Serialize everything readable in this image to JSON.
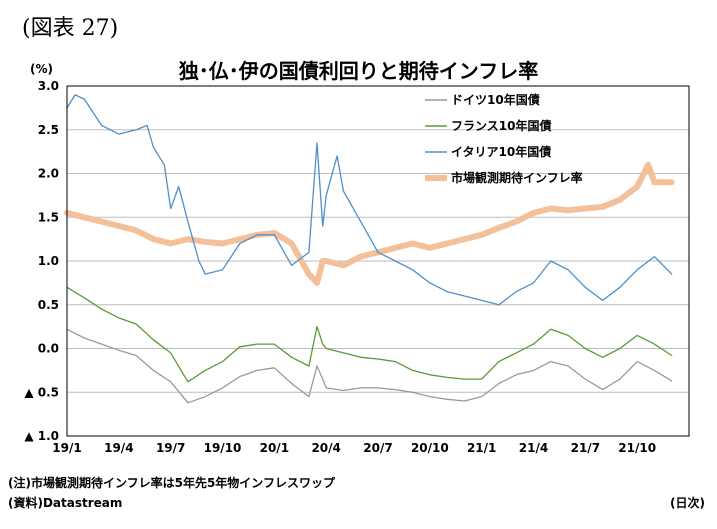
{
  "figure_label": "(図表 27)",
  "notes": {
    "note": "(注)市場観測期待インフレ率は5年先5年物インフレスワップ",
    "source": "(資料)Datastream"
  },
  "chart_data": {
    "type": "line",
    "title": "独･仏･伊の国債利回りと期待インフレ率",
    "ylabel": "(%)",
    "xlabel": "(日次)",
    "ylim": [
      -1.0,
      3.0
    ],
    "yticks": [
      3.0,
      2.5,
      2.0,
      1.5,
      1.0,
      0.5,
      0.0,
      -0.5,
      -1.0
    ],
    "ytick_labels": [
      "3.0",
      "2.5",
      "2.0",
      "1.5",
      "1.0",
      "0.5",
      "0.0",
      "▲ 0.5",
      "▲ 1.0"
    ],
    "xlim": [
      "2019-01",
      "2021-12"
    ],
    "x_tick_labels": [
      "19/1",
      "19/4",
      "19/7",
      "19/10",
      "20/1",
      "20/4",
      "20/7",
      "20/10",
      "21/1",
      "21/4",
      "21/7",
      "21/10"
    ],
    "grid": "horizontal",
    "legend_position": "top-right",
    "series": [
      {
        "name": "ドイツ10年国債",
        "color": "#9a9a9a",
        "points": [
          [
            "2019-01",
            0.22
          ],
          [
            "2019-02",
            0.12
          ],
          [
            "2019-03",
            0.05
          ],
          [
            "2019-04",
            -0.02
          ],
          [
            "2019-05",
            -0.08
          ],
          [
            "2019-06",
            -0.25
          ],
          [
            "2019-07",
            -0.38
          ],
          [
            "2019-08",
            -0.62
          ],
          [
            "2019-09",
            -0.55
          ],
          [
            "2019-10",
            -0.45
          ],
          [
            "2019-11",
            -0.32
          ],
          [
            "2019-12",
            -0.25
          ],
          [
            "2020-01",
            -0.22
          ],
          [
            "2020-02",
            -0.4
          ],
          [
            "2020-03",
            -0.55
          ],
          [
            "2020-03-15",
            -0.2
          ],
          [
            "2020-03-25",
            -0.35
          ],
          [
            "2020-04",
            -0.45
          ],
          [
            "2020-05",
            -0.48
          ],
          [
            "2020-06",
            -0.45
          ],
          [
            "2020-07",
            -0.45
          ],
          [
            "2020-08",
            -0.47
          ],
          [
            "2020-09",
            -0.5
          ],
          [
            "2020-10",
            -0.55
          ],
          [
            "2020-11",
            -0.58
          ],
          [
            "2020-12",
            -0.6
          ],
          [
            "2021-01",
            -0.55
          ],
          [
            "2021-02",
            -0.4
          ],
          [
            "2021-03",
            -0.3
          ],
          [
            "2021-04",
            -0.25
          ],
          [
            "2021-05",
            -0.15
          ],
          [
            "2021-06",
            -0.2
          ],
          [
            "2021-07",
            -0.35
          ],
          [
            "2021-08",
            -0.47
          ],
          [
            "2021-09",
            -0.35
          ],
          [
            "2021-10",
            -0.15
          ],
          [
            "2021-11",
            -0.25
          ],
          [
            "2021-12",
            -0.37
          ]
        ]
      },
      {
        "name": "フランス10年国債",
        "color": "#5a9a3a",
        "points": [
          [
            "2019-01",
            0.7
          ],
          [
            "2019-02",
            0.58
          ],
          [
            "2019-03",
            0.45
          ],
          [
            "2019-04",
            0.35
          ],
          [
            "2019-05",
            0.28
          ],
          [
            "2019-06",
            0.1
          ],
          [
            "2019-07",
            -0.05
          ],
          [
            "2019-08",
            -0.38
          ],
          [
            "2019-09",
            -0.25
          ],
          [
            "2019-10",
            -0.15
          ],
          [
            "2019-11",
            0.02
          ],
          [
            "2019-12",
            0.05
          ],
          [
            "2020-01",
            0.05
          ],
          [
            "2020-02",
            -0.1
          ],
          [
            "2020-03",
            -0.2
          ],
          [
            "2020-03-15",
            0.25
          ],
          [
            "2020-03-25",
            0.05
          ],
          [
            "2020-04",
            0.0
          ],
          [
            "2020-05",
            -0.05
          ],
          [
            "2020-06",
            -0.1
          ],
          [
            "2020-07",
            -0.12
          ],
          [
            "2020-08",
            -0.15
          ],
          [
            "2020-09",
            -0.25
          ],
          [
            "2020-10",
            -0.3
          ],
          [
            "2020-11",
            -0.33
          ],
          [
            "2020-12",
            -0.35
          ],
          [
            "2021-01",
            -0.35
          ],
          [
            "2021-02",
            -0.15
          ],
          [
            "2021-03",
            -0.05
          ],
          [
            "2021-04",
            0.05
          ],
          [
            "2021-05",
            0.22
          ],
          [
            "2021-06",
            0.15
          ],
          [
            "2021-07",
            0.0
          ],
          [
            "2021-08",
            -0.1
          ],
          [
            "2021-09",
            0.0
          ],
          [
            "2021-10",
            0.15
          ],
          [
            "2021-11",
            0.05
          ],
          [
            "2021-12",
            -0.08
          ]
        ]
      },
      {
        "name": "イタリア10年国債",
        "color": "#4f8fc8",
        "points": [
          [
            "2019-01",
            2.75
          ],
          [
            "2019-01-15",
            2.9
          ],
          [
            "2019-02",
            2.85
          ],
          [
            "2019-03",
            2.55
          ],
          [
            "2019-04",
            2.45
          ],
          [
            "2019-05",
            2.5
          ],
          [
            "2019-05-20",
            2.55
          ],
          [
            "2019-06",
            2.3
          ],
          [
            "2019-06-20",
            2.1
          ],
          [
            "2019-07",
            1.6
          ],
          [
            "2019-07-15",
            1.85
          ],
          [
            "2019-08",
            1.45
          ],
          [
            "2019-08-20",
            1.0
          ],
          [
            "2019-09",
            0.85
          ],
          [
            "2019-10",
            0.9
          ],
          [
            "2019-11",
            1.2
          ],
          [
            "2019-12",
            1.3
          ],
          [
            "2020-01",
            1.3
          ],
          [
            "2020-02",
            0.95
          ],
          [
            "2020-03",
            1.1
          ],
          [
            "2020-03-15",
            2.35
          ],
          [
            "2020-03-25",
            1.4
          ],
          [
            "2020-04",
            1.75
          ],
          [
            "2020-04-20",
            2.2
          ],
          [
            "2020-05",
            1.8
          ],
          [
            "2020-06",
            1.45
          ],
          [
            "2020-07",
            1.1
          ],
          [
            "2020-08",
            1.0
          ],
          [
            "2020-09",
            0.9
          ],
          [
            "2020-10",
            0.75
          ],
          [
            "2020-11",
            0.65
          ],
          [
            "2020-12",
            0.6
          ],
          [
            "2021-01",
            0.55
          ],
          [
            "2021-02",
            0.5
          ],
          [
            "2021-03",
            0.65
          ],
          [
            "2021-04",
            0.75
          ],
          [
            "2021-05",
            1.0
          ],
          [
            "2021-06",
            0.9
          ],
          [
            "2021-07",
            0.7
          ],
          [
            "2021-08",
            0.55
          ],
          [
            "2021-09",
            0.7
          ],
          [
            "2021-10",
            0.9
          ],
          [
            "2021-11",
            1.05
          ],
          [
            "2021-12",
            0.85
          ]
        ]
      },
      {
        "name": "市場観測期待インフレ率",
        "color": "#f4c09a",
        "points": [
          [
            "2019-01",
            1.55
          ],
          [
            "2019-02",
            1.5
          ],
          [
            "2019-03",
            1.45
          ],
          [
            "2019-04",
            1.4
          ],
          [
            "2019-05",
            1.35
          ],
          [
            "2019-06",
            1.25
          ],
          [
            "2019-07",
            1.2
          ],
          [
            "2019-08",
            1.25
          ],
          [
            "2019-09",
            1.22
          ],
          [
            "2019-10",
            1.2
          ],
          [
            "2019-11",
            1.25
          ],
          [
            "2019-12",
            1.3
          ],
          [
            "2020-01",
            1.32
          ],
          [
            "2020-02",
            1.2
          ],
          [
            "2020-03",
            0.85
          ],
          [
            "2020-03-15",
            0.75
          ],
          [
            "2020-03-25",
            1.0
          ],
          [
            "2020-04",
            1.0
          ],
          [
            "2020-05",
            0.95
          ],
          [
            "2020-06",
            1.05
          ],
          [
            "2020-07",
            1.1
          ],
          [
            "2020-08",
            1.15
          ],
          [
            "2020-09",
            1.2
          ],
          [
            "2020-10",
            1.15
          ],
          [
            "2020-11",
            1.2
          ],
          [
            "2020-12",
            1.25
          ],
          [
            "2021-01",
            1.3
          ],
          [
            "2021-02",
            1.38
          ],
          [
            "2021-03",
            1.45
          ],
          [
            "2021-04",
            1.55
          ],
          [
            "2021-05",
            1.6
          ],
          [
            "2021-06",
            1.58
          ],
          [
            "2021-07",
            1.6
          ],
          [
            "2021-08",
            1.62
          ],
          [
            "2021-09",
            1.7
          ],
          [
            "2021-10",
            1.85
          ],
          [
            "2021-10-20",
            2.1
          ],
          [
            "2021-11",
            1.9
          ],
          [
            "2021-12",
            1.9
          ]
        ]
      }
    ]
  }
}
